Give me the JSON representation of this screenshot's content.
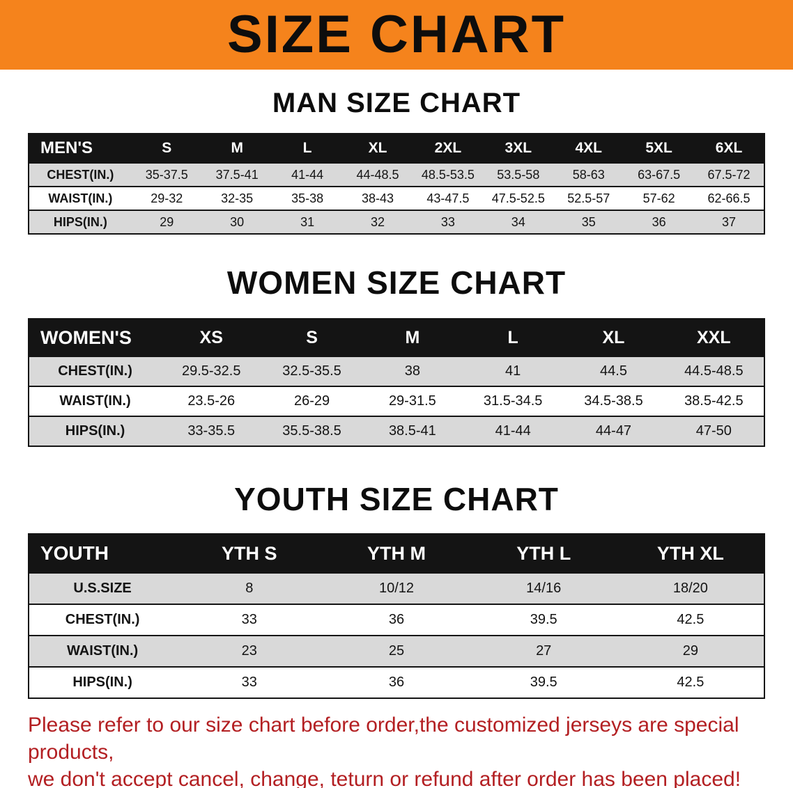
{
  "banner": {
    "title": "SIZE CHART",
    "bg_color": "#f5831c"
  },
  "sections": [
    {
      "heading": "MAN SIZE CHART",
      "table": {
        "header": [
          "MEN'S",
          "S",
          "M",
          "L",
          "XL",
          "2XL",
          "3XL",
          "4XL",
          "5XL",
          "6XL"
        ],
        "rows": [
          [
            "CHEST(IN.)",
            "35-37.5",
            "37.5-41",
            "41-44",
            "44-48.5",
            "48.5-53.5",
            "53.5-58",
            "58-63",
            "63-67.5",
            "67.5-72"
          ],
          [
            "WAIST(IN.)",
            "29-32",
            "32-35",
            "35-38",
            "38-43",
            "43-47.5",
            "47.5-52.5",
            "52.5-57",
            "57-62",
            "62-66.5"
          ],
          [
            "HIPS(IN.)",
            "29",
            "30",
            "31",
            "32",
            "33",
            "34",
            "35",
            "36",
            "37"
          ]
        ]
      }
    },
    {
      "heading": "WOMEN SIZE CHART",
      "table": {
        "header": [
          "WOMEN'S",
          "XS",
          "S",
          "M",
          "L",
          "XL",
          "XXL"
        ],
        "rows": [
          [
            "CHEST(IN.)",
            "29.5-32.5",
            "32.5-35.5",
            "38",
            "41",
            "44.5",
            "44.5-48.5"
          ],
          [
            "WAIST(IN.)",
            "23.5-26",
            "26-29",
            "29-31.5",
            "31.5-34.5",
            "34.5-38.5",
            "38.5-42.5"
          ],
          [
            "HIPS(IN.)",
            "33-35.5",
            "35.5-38.5",
            "38.5-41",
            "41-44",
            "44-47",
            "47-50"
          ]
        ]
      }
    },
    {
      "heading": "YOUTH SIZE CHART",
      "table": {
        "header": [
          "YOUTH",
          "YTH S",
          "YTH M",
          "YTH L",
          "YTH XL"
        ],
        "rows": [
          [
            "U.S.SIZE",
            "8",
            "10/12",
            "14/16",
            "18/20"
          ],
          [
            "CHEST(IN.)",
            "33",
            "36",
            "39.5",
            "42.5"
          ],
          [
            "WAIST(IN.)",
            "23",
            "25",
            "27",
            "29"
          ],
          [
            "HIPS(IN.)",
            "33",
            "36",
            "39.5",
            "42.5"
          ]
        ]
      }
    }
  ],
  "footer": {
    "line1": "Please refer to our size chart before order,the customized jerseys are special products,",
    "line2": "we don't accept cancel, change, teturn or refund after order has been placed!"
  },
  "colors": {
    "banner_orange": "#f5831c",
    "table_header_black": "#141414",
    "row_stripe_gray": "#d9d9d9",
    "footer_red": "#b31f22"
  }
}
